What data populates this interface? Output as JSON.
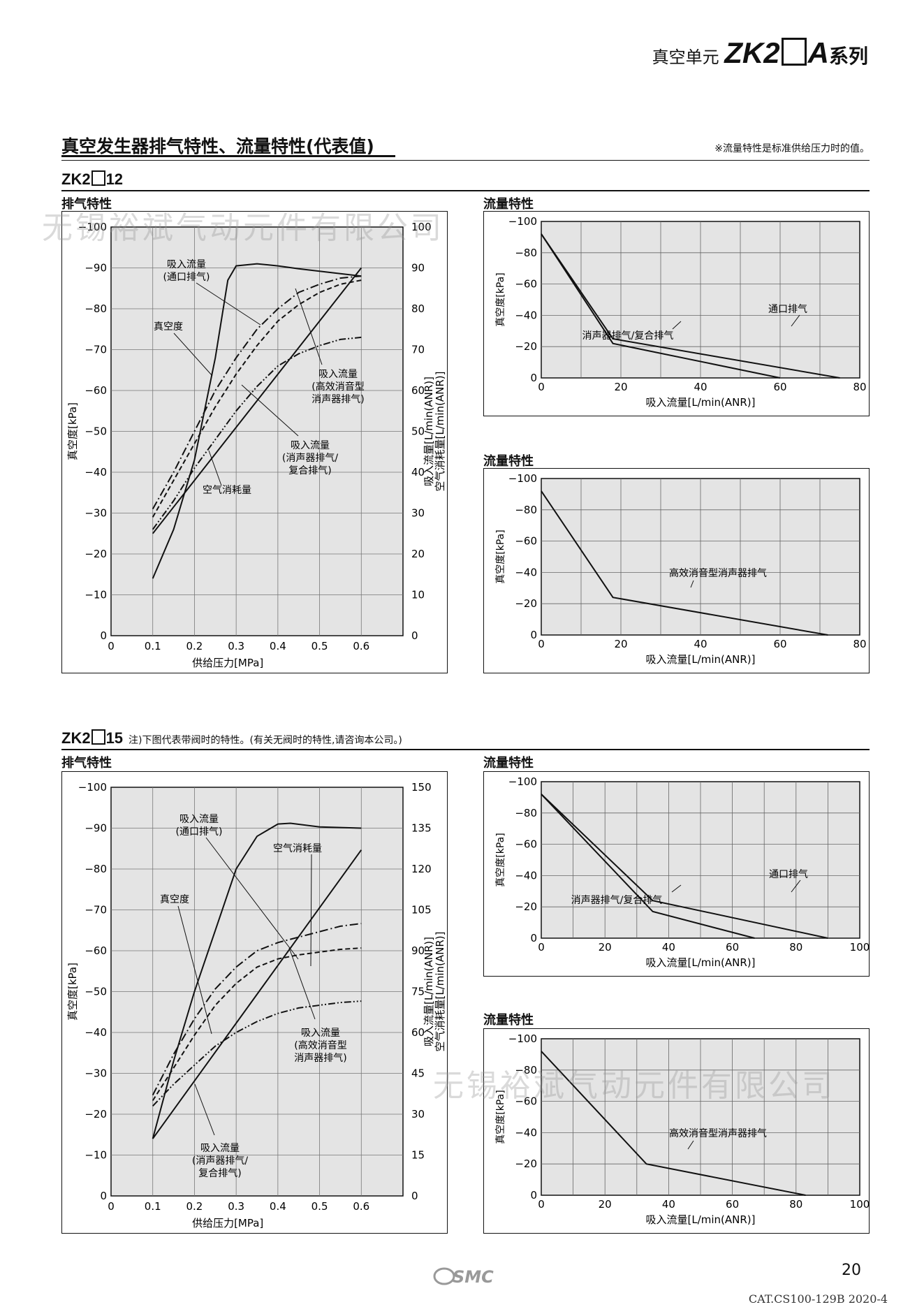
{
  "header": {
    "series_prefix": "真空单元",
    "series_model": "ZK2",
    "series_suffix": "A",
    "series_tail": "系列"
  },
  "section": {
    "title": "真空发生器排气特性、流量特性(代表值)",
    "note": "※流量特性是标准供给压力时的值。"
  },
  "watermark": "无锡裕斌气动元件有限公司",
  "blocks": [
    {
      "model_prefix": "ZK2",
      "model_suffix": "12",
      "model_note": "",
      "exhaust": {
        "label": "排气特性",
        "chart_data": {
          "type": "line",
          "xlabel": "供给压力[MPa]",
          "ylabel_left": "真空度[kPa]",
          "ylabel_right_1": "吸入流量[L/min(ANR)]",
          "ylabel_right_2": "空气消耗量[L/min(ANR)]",
          "x_ticks": [
            "0",
            "0.1",
            "0.2",
            "0.3",
            "0.4",
            "0.5",
            "0.6"
          ],
          "y_left_ticks": [
            "0",
            "−10",
            "−20",
            "−30",
            "−40",
            "−50",
            "−60",
            "−70",
            "−80",
            "−90",
            "−100"
          ],
          "y_right_ticks": [
            "0",
            "10",
            "20",
            "30",
            "40",
            "50",
            "60",
            "70",
            "80",
            "90",
            "100"
          ],
          "xlim": [
            0,
            0.7
          ],
          "ylim_left": [
            0,
            -100
          ],
          "ylim_right": [
            0,
            100
          ],
          "series": [
            {
              "name": "真空度",
              "axis": "left",
              "dash": "solid",
              "x": [
                0.1,
                0.15,
                0.2,
                0.25,
                0.28,
                0.3,
                0.35,
                0.4,
                0.45,
                0.5,
                0.55,
                0.6
              ],
              "y": [
                -14,
                -26,
                -43,
                -68,
                -87,
                -90.5,
                -91,
                -90.5,
                -89.8,
                -89.2,
                -88.6,
                -88
              ]
            },
            {
              "name": "吸入流量(通口排气)",
              "axis": "right",
              "dash": "dashdot",
              "x": [
                0.1,
                0.15,
                0.2,
                0.25,
                0.3,
                0.35,
                0.4,
                0.45,
                0.5,
                0.55,
                0.6
              ],
              "y": [
                31,
                40,
                50,
                60,
                68,
                75,
                80,
                84,
                86,
                87.5,
                88
              ]
            },
            {
              "name": "吸入流量(高效消音型消声器排气)",
              "axis": "right",
              "dash": "dashed",
              "x": [
                0.1,
                0.15,
                0.2,
                0.25,
                0.3,
                0.35,
                0.4,
                0.45,
                0.5,
                0.55,
                0.6
              ],
              "y": [
                29,
                38,
                47,
                56,
                64,
                71,
                77,
                81,
                84,
                86,
                87
              ]
            },
            {
              "name": "吸入流量(消声器排气/复合排气)",
              "axis": "right",
              "dash": "dashdotdot",
              "x": [
                0.1,
                0.15,
                0.2,
                0.25,
                0.3,
                0.35,
                0.4,
                0.45,
                0.5,
                0.55,
                0.6
              ],
              "y": [
                26,
                33,
                41,
                48,
                55,
                61,
                66,
                69,
                71,
                72.5,
                73
              ]
            },
            {
              "name": "空气消耗量",
              "axis": "right",
              "dash": "solid",
              "x": [
                0.1,
                0.6
              ],
              "y": [
                25,
                90
              ]
            }
          ],
          "annotations": [
            {
              "lines": [
                "吸入流量",
                "(通口排气)"
              ]
            },
            {
              "lines": [
                "真空度"
              ]
            },
            {
              "lines": [
                "吸入流量",
                "(高效消音型",
                "消声器排气)"
              ]
            },
            {
              "lines": [
                "吸入流量",
                "(消声器排气/",
                "复合排气)"
              ]
            },
            {
              "lines": [
                "空气消耗量"
              ]
            }
          ]
        }
      },
      "flow": [
        {
          "label": "流量特性",
          "chart_data": {
            "type": "line",
            "xlabel": "吸入流量[L/min(ANR)]",
            "ylabel": "真空度[kPa]",
            "x_ticks": [
              "0",
              "20",
              "40",
              "60",
              "80"
            ],
            "y_ticks": [
              "0",
              "−20",
              "−40",
              "−60",
              "−80",
              "−100"
            ],
            "xlim": [
              0,
              80
            ],
            "ylim": [
              0,
              -100
            ],
            "series": [
              {
                "name": "通口排气",
                "x": [
                  0,
                  18,
                  75
                ],
                "y": [
                  -92,
                  -25,
                  0
                ]
              },
              {
                "name": "消声器排气/复合排气",
                "x": [
                  0,
                  18,
                  60
                ],
                "y": [
                  -92,
                  -22,
                  0
                ]
              }
            ],
            "annotations": [
              {
                "text": "通口排气"
              },
              {
                "text": "消声器排气/复合排气"
              }
            ]
          }
        },
        {
          "label": "流量特性",
          "chart_data": {
            "type": "line",
            "xlabel": "吸入流量[L/min(ANR)]",
            "ylabel": "真空度[kPa]",
            "x_ticks": [
              "0",
              "20",
              "40",
              "60",
              "80"
            ],
            "y_ticks": [
              "0",
              "−20",
              "−40",
              "−60",
              "−80",
              "−100"
            ],
            "xlim": [
              0,
              80
            ],
            "ylim": [
              0,
              -100
            ],
            "series": [
              {
                "name": "高效消音型消声器排气",
                "x": [
                  0,
                  18,
                  72
                ],
                "y": [
                  -92,
                  -24,
                  0
                ]
              }
            ],
            "annotations": [
              {
                "text": "高效消音型消声器排气"
              }
            ]
          }
        }
      ]
    },
    {
      "model_prefix": "ZK2",
      "model_suffix": "15",
      "model_note": "注)下图代表带阀时的特性。(有关无阀时的特性,请咨询本公司。)",
      "exhaust": {
        "label": "排气特性",
        "chart_data": {
          "type": "line",
          "xlabel": "供给压力[MPa]",
          "ylabel_left": "真空度[kPa]",
          "ylabel_right_1": "吸入流量[L/min(ANR)]",
          "ylabel_right_2": "空气消耗量[L/min(ANR)]",
          "x_ticks": [
            "0",
            "0.1",
            "0.2",
            "0.3",
            "0.4",
            "0.5",
            "0.6"
          ],
          "y_left_ticks": [
            "0",
            "−10",
            "−20",
            "−30",
            "−40",
            "−50",
            "−60",
            "−70",
            "−80",
            "−90",
            "−100"
          ],
          "y_right_ticks": [
            "0",
            "15",
            "30",
            "45",
            "60",
            "75",
            "90",
            "105",
            "120",
            "135",
            "150"
          ],
          "xlim": [
            0,
            0.7
          ],
          "ylim_left": [
            0,
            -100
          ],
          "ylim_right": [
            0,
            150
          ],
          "series": [
            {
              "name": "真空度",
              "axis": "left",
              "dash": "solid",
              "x": [
                0.1,
                0.15,
                0.2,
                0.25,
                0.3,
                0.35,
                0.4,
                0.43,
                0.5,
                0.6
              ],
              "y": [
                -14,
                -33,
                -50,
                -65,
                -80,
                -88,
                -91,
                -91.2,
                -90.3,
                -90
              ]
            },
            {
              "name": "空气消耗量",
              "axis": "right",
              "dash": "solid",
              "x": [
                0.1,
                0.6
              ],
              "y": [
                21,
                127
              ]
            },
            {
              "name": "吸入流量(通口排气)",
              "axis": "right",
              "dash": "dashdot",
              "x": [
                0.1,
                0.15,
                0.2,
                0.25,
                0.3,
                0.35,
                0.4,
                0.45,
                0.5,
                0.55,
                0.6
              ],
              "y": [
                37,
                52,
                65,
                76,
                84,
                90,
                93,
                95,
                97,
                99,
                100
              ]
            },
            {
              "name": "吸入流量(高效消音型消声器排气)",
              "axis": "right",
              "dash": "dashed",
              "x": [
                0.1,
                0.15,
                0.2,
                0.25,
                0.3,
                0.35,
                0.4,
                0.45,
                0.5,
                0.55,
                0.6
              ],
              "y": [
                35,
                47,
                59,
                70,
                78,
                84,
                87,
                88.5,
                89.5,
                90.5,
                91
              ]
            },
            {
              "name": "吸入流量(消声器排气/复合排气)",
              "axis": "right",
              "dash": "dashdotdot",
              "x": [
                0.1,
                0.15,
                0.2,
                0.25,
                0.3,
                0.35,
                0.4,
                0.45,
                0.5,
                0.55,
                0.6
              ],
              "y": [
                33,
                41,
                48,
                55,
                60,
                64,
                67,
                69,
                70,
                71,
                71.5
              ]
            }
          ],
          "annotations": [
            {
              "lines": [
                "吸入流量",
                "(通口排气)"
              ]
            },
            {
              "lines": [
                "空气消耗量"
              ]
            },
            {
              "lines": [
                "真空度"
              ]
            },
            {
              "lines": [
                "吸入流量",
                "(高效消音型",
                "消声器排气)"
              ]
            },
            {
              "lines": [
                "吸入流量",
                "(消声器排气/",
                "复合排气)"
              ]
            }
          ]
        }
      },
      "flow": [
        {
          "label": "流量特性",
          "chart_data": {
            "type": "line",
            "xlabel": "吸入流量[L/min(ANR)]",
            "ylabel": "真空度[kPa]",
            "x_ticks": [
              "0",
              "20",
              "40",
              "60",
              "80",
              "100"
            ],
            "y_ticks": [
              "0",
              "−20",
              "−40",
              "−60",
              "−80",
              "−100"
            ],
            "xlim": [
              0,
              100
            ],
            "ylim": [
              0,
              -100
            ],
            "series": [
              {
                "name": "通口排气",
                "x": [
                  0,
                  35,
                  90
                ],
                "y": [
                  -92,
                  -24,
                  0
                ]
              },
              {
                "name": "消声器排气/复合排气",
                "x": [
                  0,
                  35,
                  67
                ],
                "y": [
                  -92,
                  -17,
                  0
                ]
              }
            ],
            "annotations": [
              {
                "text": "通口排气"
              },
              {
                "text": "消声器排气/复合排气"
              }
            ]
          }
        },
        {
          "label": "流量特性",
          "chart_data": {
            "type": "line",
            "xlabel": "吸入流量[L/min(ANR)]",
            "ylabel": "真空度[kPa]",
            "x_ticks": [
              "0",
              "20",
              "40",
              "60",
              "80",
              "100"
            ],
            "y_ticks": [
              "0",
              "−20",
              "−40",
              "−60",
              "−80",
              "−100"
            ],
            "xlim": [
              0,
              100
            ],
            "ylim": [
              0,
              -100
            ],
            "series": [
              {
                "name": "高效消音型消声器排气",
                "x": [
                  0,
                  33,
                  83
                ],
                "y": [
                  -92,
                  -20,
                  0
                ]
              }
            ],
            "annotations": [
              {
                "text": "高效消音型消声器排气"
              }
            ]
          }
        }
      ]
    }
  ],
  "footer": {
    "page_number": "20",
    "logo_text": "SMC",
    "catalog": "CAT.CS100-129B 2020-4"
  }
}
